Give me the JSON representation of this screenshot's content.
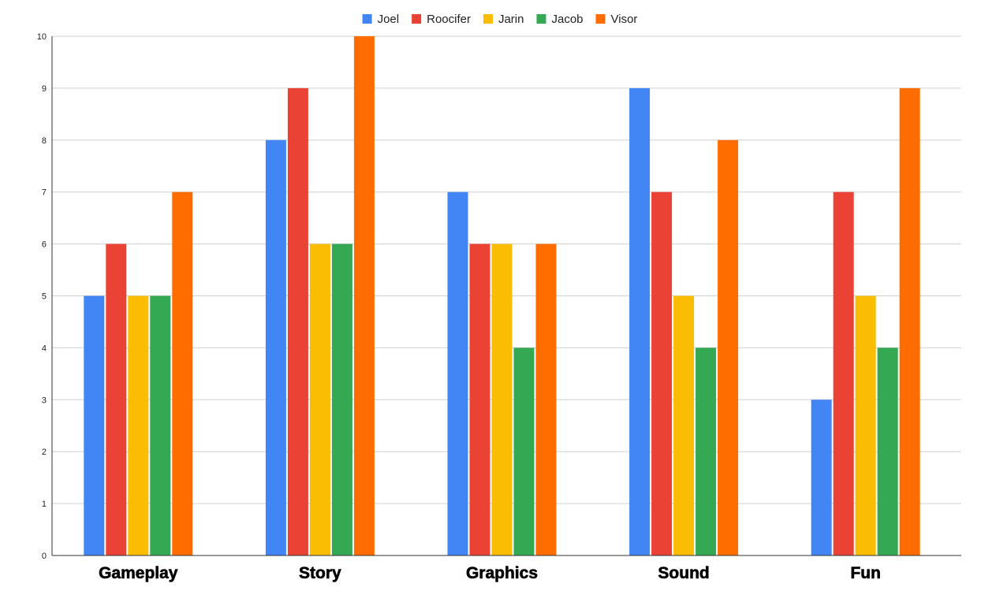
{
  "chart_data": {
    "type": "bar",
    "title": "",
    "xlabel": "",
    "ylabel": "",
    "categories": [
      "Gameplay",
      "Story",
      "Graphics",
      "Sound",
      "Fun"
    ],
    "series": [
      {
        "name": "Joel",
        "color": "#4285f4",
        "values": [
          5,
          8,
          7,
          9,
          3
        ]
      },
      {
        "name": "Roocifer",
        "color": "#ea4335",
        "values": [
          6,
          9,
          6,
          7,
          7
        ]
      },
      {
        "name": "Jarin",
        "color": "#fbbc04",
        "values": [
          5,
          6,
          6,
          5,
          5
        ]
      },
      {
        "name": "Jacob",
        "color": "#34a853",
        "values": [
          5,
          6,
          4,
          4,
          4
        ]
      },
      {
        "name": "Visor",
        "color": "#ff6d01",
        "values": [
          7,
          10,
          6,
          8,
          9
        ]
      }
    ],
    "ylim": [
      0,
      10
    ],
    "yticks": [
      "0",
      "1",
      "2",
      "3",
      "4",
      "5",
      "6",
      "7",
      "8",
      "9",
      "10"
    ],
    "grid": true,
    "legend_position": "top-center"
  }
}
